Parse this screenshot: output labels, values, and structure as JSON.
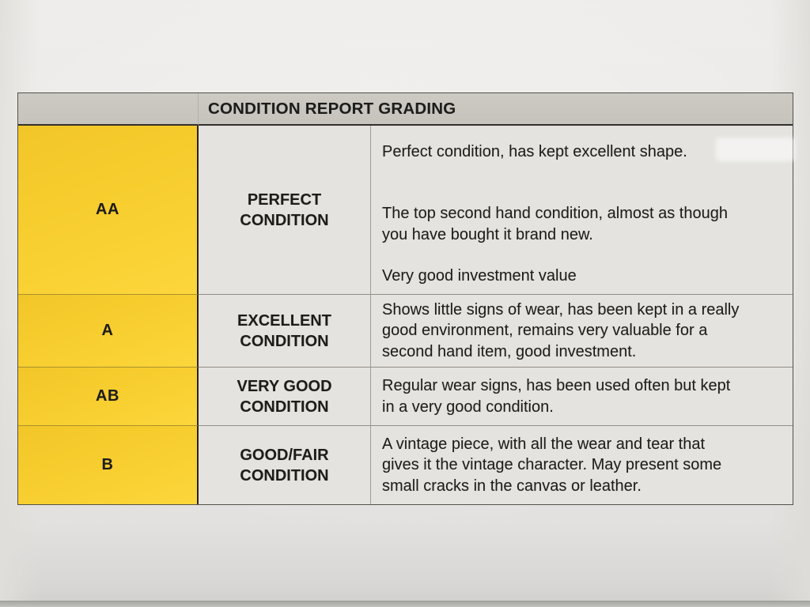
{
  "table": {
    "title": "CONDITION REPORT GRADING",
    "rows": [
      {
        "grade": "AA",
        "name": "PERFECT\nCONDITION",
        "paragraphs": [
          "Perfect condition, has kept excellent shape.",
          "The top second hand condition, almost as though\nyou have bought it brand new.",
          "Very good investment value"
        ]
      },
      {
        "grade": "A",
        "name": "EXCELLENT\nCONDITION",
        "paragraphs": [
          "Shows little signs of wear, has been kept in a really\ngood environment, remains very valuable for a\nsecond hand item, good investment."
        ]
      },
      {
        "grade": "AB",
        "name": "VERY GOOD\nCONDITION",
        "paragraphs": [
          "Regular wear signs, has been used often but kept\nin a very good condition."
        ]
      },
      {
        "grade": "B",
        "name": "GOOD/FAIR\nCONDITION",
        "paragraphs": [
          "A vintage piece, with all the wear and tear that\ngives it the vintage character. May present some\nsmall cracks in the canvas or leather."
        ]
      }
    ]
  },
  "colors": {
    "grade_column_yellow": "#f8cf30",
    "header_gray": "#c9c6c0",
    "cell_background": "#e5e3df",
    "paper_background": "#eae8e6",
    "text": "#1d1c1a",
    "dark_divider": "#26231f"
  }
}
